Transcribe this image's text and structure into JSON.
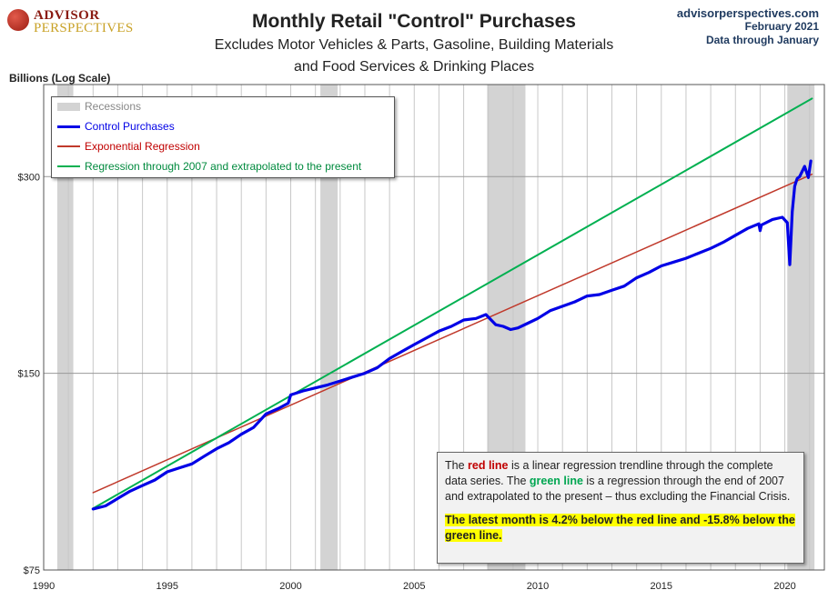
{
  "brand": {
    "line1": "ADVISOR",
    "line2": "PERSPECTIVES"
  },
  "header": {
    "title": "Monthly Retail \"Control\" Purchases",
    "subtitle1": "Excludes Motor Vehicles & Parts, Gasoline, Building Materials",
    "subtitle2": "and Food Services & Drinking Places"
  },
  "source": {
    "site": "advisorperspectives.com",
    "date": "February 2021",
    "through": "Data through January"
  },
  "legend": {
    "recessions": "Recessions",
    "control": "Control Purchases",
    "exp": "Exponential Regression",
    "green": "Regression through 2007 and extrapolated to the present"
  },
  "note": {
    "p1_a": "The ",
    "p1_red": "red line",
    "p1_b": " is a  linear regression trendline  through the complete data series. The ",
    "p1_green": "green line",
    "p1_c": " is a regression through the end of 2007 and extrapolated to the present – thus excluding the Financial Crisis.",
    "p2": "The latest month is 4.2%  below the red line and -15.8% below the green line."
  },
  "colors": {
    "control": "#0000e6",
    "exp": "#c0392b",
    "green": "#00b050",
    "recession": "#d3d3d3",
    "grid": "#c8c8c8"
  },
  "chart_data": {
    "type": "line",
    "title": "Monthly Retail \"Control\" Purchases",
    "ylabel": "Billions (Log Scale)",
    "yscale": "log",
    "xlim": [
      1990,
      2021.6
    ],
    "ylim": [
      75,
      415
    ],
    "x_ticks": [
      "1990",
      "1995",
      "2000",
      "2005",
      "2010",
      "2015",
      "2020"
    ],
    "y_ticks": [
      {
        "value": 75,
        "label": "$75"
      },
      {
        "value": 150,
        "label": "$150"
      },
      {
        "value": 300,
        "label": "$300"
      }
    ],
    "grid": "vertical yearly and horizontal at y ticks",
    "legend_position": "top-left",
    "recessions": [
      [
        1990.55,
        1991.2
      ],
      [
        2001.2,
        2001.9
      ],
      [
        2007.95,
        2009.5
      ],
      [
        2020.1,
        2021.2
      ]
    ],
    "series": [
      {
        "name": "Control Purchases",
        "x": [
          1992,
          1992.5,
          1993,
          1993.5,
          1994,
          1994.5,
          1995,
          1995.5,
          1996,
          1996.5,
          1997,
          1997.5,
          1998,
          1998.5,
          1999,
          1999.5,
          1999.9,
          2000,
          2000.5,
          2001,
          2001.5,
          2002,
          2002.5,
          2003,
          2003.5,
          2004,
          2004.5,
          2005,
          2005.5,
          2006,
          2006.5,
          2007,
          2007.5,
          2007.9,
          2008.3,
          2008.6,
          2008.9,
          2009.2,
          2009.6,
          2010,
          2010.5,
          2011,
          2011.5,
          2012,
          2012.5,
          2013,
          2013.5,
          2014,
          2014.5,
          2015,
          2015.5,
          2016,
          2016.5,
          2017,
          2017.5,
          2018,
          2018.5,
          2018.95,
          2019.0,
          2019.05,
          2019.5,
          2019.9,
          2020.1,
          2020.2,
          2020.3,
          2020.4,
          2020.5,
          2020.6,
          2020.8,
          2020.95,
          2021.05
        ],
        "values": [
          93,
          94,
          96.5,
          99,
          101,
          103,
          106,
          107.5,
          109,
          112,
          115,
          117.5,
          121,
          124,
          130,
          132.5,
          135,
          139,
          141,
          142.5,
          144,
          146,
          148,
          150,
          153,
          158,
          162,
          166,
          170,
          174,
          177,
          181,
          182,
          184.5,
          178,
          177,
          175,
          176,
          179,
          182,
          187,
          190,
          193,
          197,
          198,
          201,
          204,
          210,
          214,
          219,
          222,
          225,
          229,
          233,
          238,
          244,
          250,
          254,
          248,
          253,
          258,
          260,
          255,
          220,
          265,
          290,
          298,
          300,
          311,
          299,
          317
        ]
      },
      {
        "name": "Exponential Regression",
        "x": [
          1992,
          2021.1
        ],
        "values": [
          98.5,
          302.5
        ]
      },
      {
        "name": "Regression through 2007 and extrapolated to the present",
        "x": [
          1992,
          2021.1
        ],
        "values": [
          93.2,
          395
        ]
      }
    ]
  }
}
